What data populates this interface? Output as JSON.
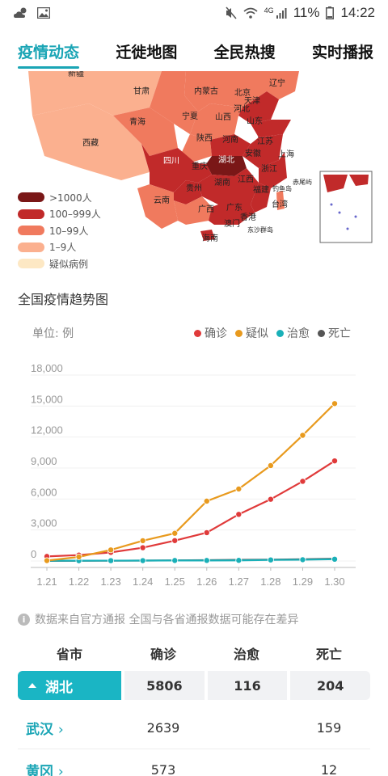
{
  "status_bar": {
    "battery": "11%",
    "time": "14:22",
    "network": "4G"
  },
  "tabs": [
    {
      "label": "疫情动态",
      "active": true
    },
    {
      "label": "迁徙地图",
      "active": false
    },
    {
      "label": "全民热搜",
      "active": false
    },
    {
      "label": "实时播报",
      "active": false
    }
  ],
  "map": {
    "provinces": [
      "新疆",
      "甘肃",
      "内蒙古",
      "辽宁",
      "北京",
      "天津",
      "河北",
      "宁夏",
      "山西",
      "山东",
      "青海",
      "陕西",
      "河南",
      "江苏",
      "西藏",
      "四川",
      "湖北",
      "安徽",
      "上海",
      "重庆",
      "浙江",
      "贵州",
      "湖南",
      "江西",
      "云南",
      "福建",
      "广西",
      "广东",
      "台湾",
      "香港",
      "澳门",
      "海南",
      "钓鱼岛",
      "赤尾屿",
      "东沙群岛"
    ],
    "legend": [
      {
        "label": ">1000人",
        "color": "#7a1717"
      },
      {
        "label": "100–999人",
        "color": "#c12a2a"
      },
      {
        "label": "10–99人",
        "color": "#f07a5e"
      },
      {
        "label": "1–9人",
        "color": "#fbb08f"
      },
      {
        "label": "疑似病例",
        "color": "#fde8c4"
      }
    ]
  },
  "trend": {
    "title": "全国疫情趋势图",
    "unit": "单位: 例",
    "legend": [
      {
        "label": "确诊",
        "color": "#e03a3a"
      },
      {
        "label": "疑似",
        "color": "#e89a1e"
      },
      {
        "label": "治愈",
        "color": "#1ab0b8"
      },
      {
        "label": "死亡",
        "color": "#555555"
      }
    ]
  },
  "chart_data": {
    "type": "line",
    "x": [
      "1.21",
      "1.22",
      "1.23",
      "1.24",
      "1.25",
      "1.26",
      "1.27",
      "1.28",
      "1.29",
      "1.30"
    ],
    "y_ticks": [
      "0",
      "3,000",
      "6,000",
      "9,000",
      "12,000",
      "15,000",
      "18,000"
    ],
    "ylim": [
      0,
      18000
    ],
    "series": [
      {
        "name": "确诊",
        "color": "#e03a3a",
        "values": [
          440,
          571,
          830,
          1287,
          1975,
          2744,
          4515,
          5974,
          7711,
          9692
        ]
      },
      {
        "name": "疑似",
        "color": "#e89a1e",
        "values": [
          37,
          393,
          1072,
          1965,
          2684,
          5794,
          6973,
          9239,
          12167,
          15238
        ]
      },
      {
        "name": "治愈",
        "color": "#1ab0b8",
        "values": [
          25,
          28,
          34,
          38,
          49,
          51,
          60,
          103,
          124,
          171
        ]
      },
      {
        "name": "死亡",
        "color": "#555555",
        "values": [
          9,
          17,
          25,
          41,
          56,
          80,
          106,
          132,
          170,
          213
        ]
      }
    ]
  },
  "notice": "数据来自官方通报 全国与各省通报数据可能存在差异",
  "table": {
    "headers": [
      "省市",
      "确诊",
      "治愈",
      "死亡"
    ],
    "hubei": {
      "name": "湖北",
      "confirmed": "5806",
      "cured": "116",
      "dead": "204"
    },
    "cities": [
      {
        "name": "武汉",
        "confirmed": "2639",
        "cured": "",
        "dead": "159"
      },
      {
        "name": "黄冈",
        "confirmed": "573",
        "cured": "",
        "dead": "12"
      }
    ]
  }
}
